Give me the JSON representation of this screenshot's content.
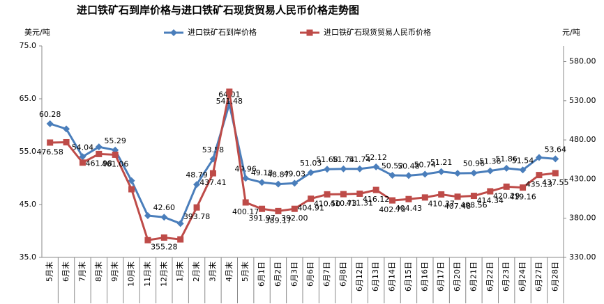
{
  "chart_data": {
    "type": "line",
    "title": "进口铁矿石到岸价格与进口铁矿石现货贸易人民币价格走势图",
    "y_label": "美元/吨",
    "y2_label": "元/吨",
    "categories": [
      "5月末",
      "6月末",
      "7月末",
      "8月末",
      "9月末",
      "10月末",
      "11月末",
      "12月末",
      "1月末",
      "2月末",
      "3月末",
      "4月末",
      "5月末",
      "6月1日",
      "6月2日",
      "6月3日",
      "6月6日",
      "6月7日",
      "6月8日",
      "6月12日",
      "6月13日",
      "6月14日",
      "6月15日",
      "6月16日",
      "6月17日",
      "6月20日",
      "6月21日",
      "6月22日",
      "6月23日",
      "6月24日",
      "6月27日",
      "6月28日"
    ],
    "series": [
      {
        "name": "进口铁矿石到岸价格",
        "color": "#4a7ebb",
        "marker": "diamond",
        "values": [
          60.28,
          59.3,
          54.04,
          55.9,
          55.29,
          49.5,
          42.9,
          42.6,
          41.4,
          48.79,
          53.58,
          64.01,
          49.96,
          49.18,
          48.87,
          49.03,
          51.03,
          51.68,
          51.74,
          51.74,
          52.12,
          50.52,
          50.48,
          50.74,
          51.21,
          50.9,
          50.96,
          51.36,
          51.86,
          51.54,
          53.9,
          53.64
        ],
        "value_labels": [
          "60.28",
          null,
          "54.04",
          null,
          "55.29",
          null,
          null,
          "42.60",
          null,
          "48.79",
          "53.58",
          "64.01",
          "49.96",
          "49.18",
          "48.87",
          "49.03",
          "51.03",
          "51.68",
          "51.74",
          "51.74",
          "52.12",
          "50.52",
          "50.48",
          "50.74",
          "51.21",
          null,
          "50.96",
          "51.36",
          "51.86",
          "51.54",
          null,
          "53.64"
        ]
      },
      {
        "name": "进口铁矿石现货贸易人民币价格",
        "color": "#be4b48",
        "marker": "square",
        "axis": "y2",
        "values": [
          476.58,
          477,
          451,
          461.98,
          461.06,
          417,
          352,
          355.28,
          353,
          393.78,
          437.41,
          541.48,
          400.17,
          391.97,
          389.17,
          392.0,
          404.91,
          410.5,
          410.73,
          411.31,
          416.12,
          402.75,
          404.43,
          406.5,
          410.37,
          407.48,
          408.56,
          414.34,
          420.29,
          419.16,
          435.13,
          437.55
        ],
        "value_labels": [
          "476.58",
          null,
          null,
          "461.98",
          "461.06",
          null,
          null,
          "355.28",
          null,
          "393.78",
          "437.41",
          "541.48",
          "400.17",
          "391.97",
          "389.17",
          "392.00",
          "404.91",
          "410.50",
          "410.73",
          "411.31",
          "416.12",
          "402.75",
          "404.43",
          null,
          "410.37",
          "407.48",
          "408.56",
          "414.34",
          "420.29",
          "419.16",
          "435.13",
          "437.55"
        ]
      }
    ],
    "ylim": [
      35,
      75
    ],
    "yticks": [
      {
        "value": 35,
        "label": "35.0"
      },
      {
        "value": 45,
        "label": "45.0"
      },
      {
        "value": 55,
        "label": "55.0"
      },
      {
        "value": 65,
        "label": "65.0"
      },
      {
        "value": 75,
        "label": "75.0"
      }
    ],
    "y2lim": [
      330,
      600
    ],
    "y2ticks": [
      {
        "value": 330,
        "label": "330.00"
      },
      {
        "value": 380,
        "label": "380.00"
      },
      {
        "value": 430,
        "label": "430.00"
      },
      {
        "value": 480,
        "label": "480.00"
      },
      {
        "value": 530,
        "label": "530.00"
      },
      {
        "value": 580,
        "label": "580.00"
      }
    ],
    "legend": "top"
  }
}
